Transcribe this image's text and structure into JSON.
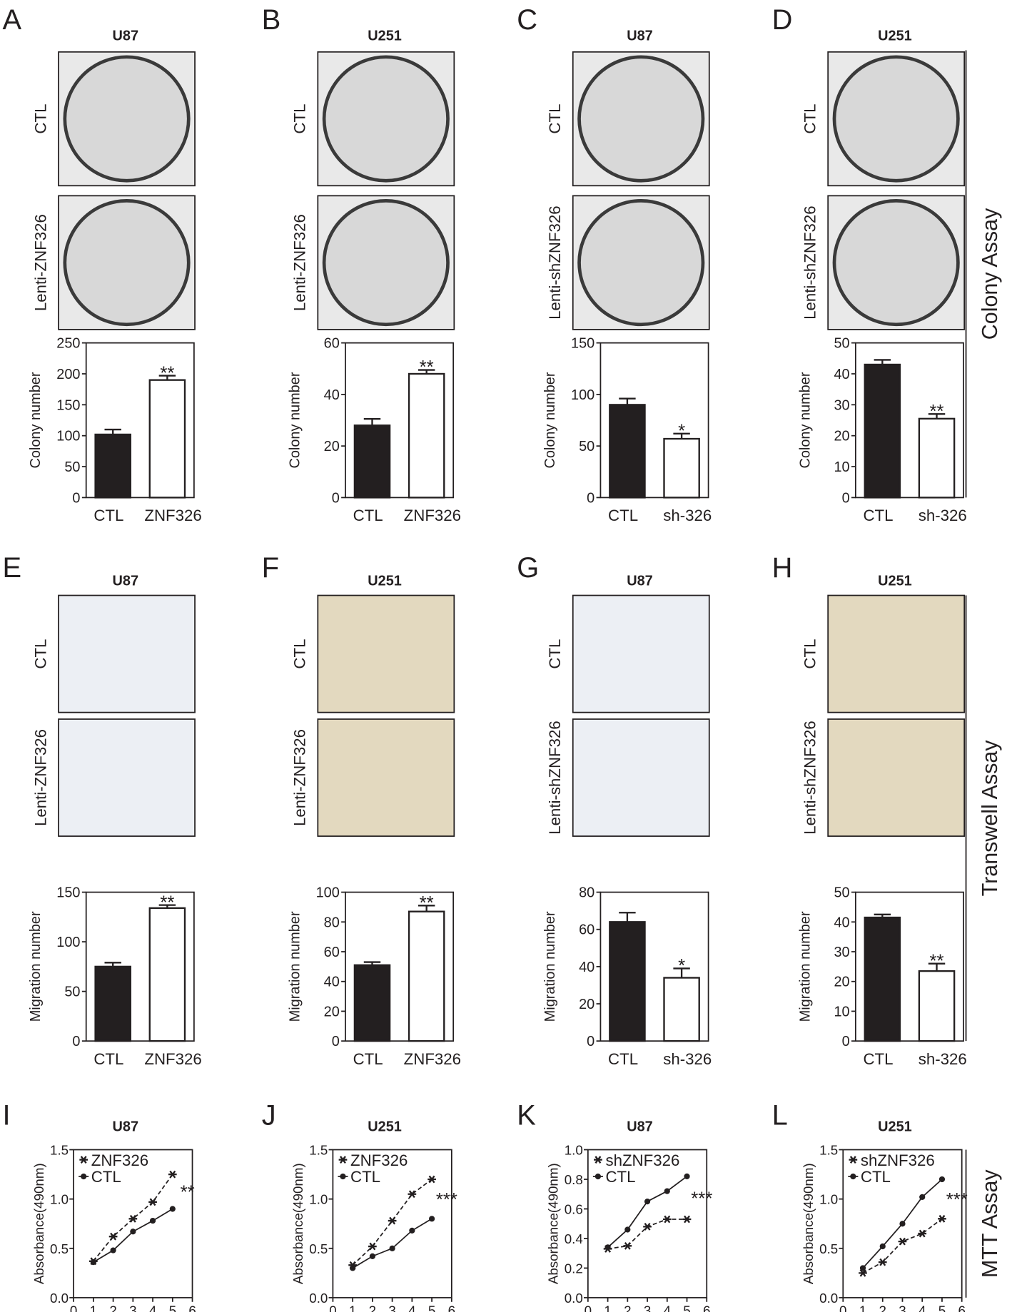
{
  "panels": [
    {
      "letter": "A",
      "image_labels": [
        "CTL",
        "Lenti-ZNF326"
      ]
    },
    {
      "letter": "B",
      "image_labels": [
        "CTL",
        "Lenti-ZNF326"
      ]
    },
    {
      "letter": "C",
      "image_labels": [
        "CTL",
        "Lenti-shZNF326"
      ]
    },
    {
      "letter": "D",
      "image_labels": [
        "CTL",
        "Lenti-shZNF326"
      ]
    },
    {
      "letter": "E",
      "image_labels": [
        "CTL",
        "Lenti-ZNF326"
      ]
    },
    {
      "letter": "F",
      "image_labels": [
        "CTL",
        "Lenti-ZNF326"
      ]
    },
    {
      "letter": "G",
      "image_labels": [
        "CTL",
        "Lenti-shZNF326"
      ]
    },
    {
      "letter": "H",
      "image_labels": [
        "CTL",
        "Lenti-shZNF326"
      ]
    },
    {
      "letter": "I"
    },
    {
      "letter": "J"
    },
    {
      "letter": "K"
    },
    {
      "letter": "L"
    }
  ],
  "sections": [
    {
      "label": "Colony Assay"
    },
    {
      "label": "Transwell Assay"
    },
    {
      "label": "MTT Assay"
    }
  ],
  "chart_data": [
    {
      "type": "bar",
      "title": "U87",
      "y_label": "Colony number",
      "categories": [
        "CTL",
        "ZNF326"
      ],
      "values": [
        102,
        190
      ],
      "errors": [
        8,
        7
      ],
      "colors": [
        "#231f20",
        "#ffffff"
      ],
      "annotation": "**",
      "ylim": [
        0,
        250
      ],
      "yticks": [
        0,
        50,
        100,
        150,
        200,
        250
      ]
    },
    {
      "type": "bar",
      "title": "U251",
      "y_label": "Colony number",
      "categories": [
        "CTL",
        "ZNF326"
      ],
      "values": [
        28,
        48
      ],
      "errors": [
        2.5,
        1.5
      ],
      "colors": [
        "#231f20",
        "#ffffff"
      ],
      "annotation": "**",
      "ylim": [
        0,
        60
      ],
      "yticks": [
        0,
        20,
        40,
        60
      ]
    },
    {
      "type": "bar",
      "title": "U87",
      "y_label": "Colony number",
      "categories": [
        "CTL",
        "sh-326"
      ],
      "values": [
        90,
        57
      ],
      "errors": [
        6,
        5
      ],
      "colors": [
        "#231f20",
        "#ffffff"
      ],
      "annotation": "*",
      "ylim": [
        0,
        150
      ],
      "yticks": [
        0,
        50,
        100,
        150
      ]
    },
    {
      "type": "bar",
      "title": "U251",
      "y_label": "Colony number",
      "categories": [
        "CTL",
        "sh-326"
      ],
      "values": [
        43,
        25.5
      ],
      "errors": [
        1.5,
        1.5
      ],
      "colors": [
        "#231f20",
        "#ffffff"
      ],
      "annotation": "**",
      "ylim": [
        0,
        50
      ],
      "yticks": [
        0,
        10,
        20,
        30,
        40,
        50
      ]
    },
    {
      "type": "bar",
      "title": "U87",
      "y_label": "Migration number",
      "categories": [
        "CTL",
        "ZNF326"
      ],
      "values": [
        75,
        134
      ],
      "errors": [
        4,
        3
      ],
      "colors": [
        "#231f20",
        "#ffffff"
      ],
      "annotation": "**",
      "ylim": [
        0,
        150
      ],
      "yticks": [
        0,
        50,
        100,
        150
      ]
    },
    {
      "type": "bar",
      "title": "U251",
      "y_label": "Migration number",
      "categories": [
        "CTL",
        "ZNF326"
      ],
      "values": [
        51,
        87
      ],
      "errors": [
        2,
        4
      ],
      "colors": [
        "#231f20",
        "#ffffff"
      ],
      "annotation": "**",
      "ylim": [
        0,
        100
      ],
      "yticks": [
        0,
        20,
        40,
        60,
        80,
        100
      ]
    },
    {
      "type": "bar",
      "title": "U87",
      "y_label": "Migration number",
      "categories": [
        "CTL",
        "sh-326"
      ],
      "values": [
        64,
        34
      ],
      "errors": [
        5,
        5
      ],
      "colors": [
        "#231f20",
        "#ffffff"
      ],
      "annotation": "*",
      "ylim": [
        0,
        80
      ],
      "yticks": [
        0,
        20,
        40,
        60,
        80
      ]
    },
    {
      "type": "bar",
      "title": "U251",
      "y_label": "Migration number",
      "categories": [
        "CTL",
        "sh-326"
      ],
      "values": [
        41.5,
        23.5
      ],
      "errors": [
        1,
        2.5
      ],
      "colors": [
        "#231f20",
        "#ffffff"
      ],
      "annotation": "**",
      "ylim": [
        0,
        50
      ],
      "yticks": [
        0,
        10,
        20,
        30,
        40,
        50
      ]
    },
    {
      "type": "line",
      "title": "U87",
      "y_label": "Absorbance(490nm)",
      "x": [
        1,
        2,
        3,
        4,
        5
      ],
      "series": [
        {
          "name": "ZNF326",
          "color": "#231f20",
          "line_style": "dashed",
          "values": [
            0.37,
            0.62,
            0.8,
            0.97,
            1.25
          ]
        },
        {
          "name": "CTL",
          "color": "#231f20",
          "line_style": "solid",
          "values": [
            0.36,
            0.48,
            0.67,
            0.78,
            0.9
          ]
        }
      ],
      "annotation": "**",
      "legend": "upper left",
      "xlim": [
        0,
        6
      ],
      "xticks": [
        0,
        1,
        2,
        3,
        4,
        5,
        6
      ],
      "ylim": [
        0,
        1.5
      ],
      "yticks": [
        {
          "value": 0,
          "label": "0.0"
        },
        0.5,
        {
          "value": 1,
          "label": "1.0"
        },
        1.5
      ]
    },
    {
      "type": "line",
      "title": "U251",
      "y_label": "Absorbance(490nm)",
      "x": [
        1,
        2,
        3,
        4,
        5
      ],
      "series": [
        {
          "name": "ZNF326",
          "color": "#231f20",
          "line_style": "dashed",
          "values": [
            0.33,
            0.52,
            0.78,
            1.05,
            1.2
          ]
        },
        {
          "name": "CTL",
          "color": "#231f20",
          "line_style": "solid",
          "values": [
            0.3,
            0.42,
            0.5,
            0.68,
            0.8
          ]
        }
      ],
      "annotation": "***",
      "legend": "upper left",
      "xlim": [
        0,
        6
      ],
      "xticks": [
        0,
        1,
        2,
        3,
        4,
        5,
        6
      ],
      "ylim": [
        0,
        1.5
      ],
      "yticks": [
        {
          "value": 0,
          "label": "0.0"
        },
        0.5,
        {
          "value": 1,
          "label": "1.0"
        },
        1.5
      ]
    },
    {
      "type": "line",
      "title": "U87",
      "y_label": "Absorbance(490nm)",
      "x": [
        1,
        2,
        3,
        4,
        5
      ],
      "series": [
        {
          "name": "shZNF326",
          "color": "#231f20",
          "line_style": "dashed",
          "values": [
            0.33,
            0.35,
            0.48,
            0.53,
            0.53
          ]
        },
        {
          "name": "CTL",
          "color": "#231f20",
          "line_style": "solid",
          "values": [
            0.34,
            0.46,
            0.65,
            0.72,
            0.82
          ]
        }
      ],
      "annotation": "***",
      "legend": "upper left",
      "xlim": [
        0,
        6
      ],
      "xticks": [
        0,
        1,
        2,
        3,
        4,
        5,
        6
      ],
      "ylim": [
        0,
        1
      ],
      "yticks": [
        {
          "value": 0,
          "label": "0.0"
        },
        0.2,
        0.4,
        0.6,
        0.8,
        {
          "value": 1,
          "label": "1.0"
        }
      ]
    },
    {
      "type": "line",
      "title": "U251",
      "y_label": "Absorbance(490nm)",
      "x": [
        1,
        2,
        3,
        4,
        5
      ],
      "series": [
        {
          "name": "shZNF326",
          "color": "#231f20",
          "line_style": "dashed",
          "values": [
            0.25,
            0.36,
            0.57,
            0.65,
            0.8
          ]
        },
        {
          "name": "CTL",
          "color": "#231f20",
          "line_style": "solid",
          "values": [
            0.3,
            0.52,
            0.75,
            1.02,
            1.2
          ]
        }
      ],
      "annotation": "***",
      "legend": "upper left",
      "xlim": [
        0,
        6
      ],
      "xticks": [
        0,
        1,
        2,
        3,
        4,
        5,
        6
      ],
      "ylim": [
        0,
        1.5
      ],
      "yticks": [
        {
          "value": 0,
          "label": "0.0"
        },
        0.5,
        {
          "value": 1,
          "label": "1.0"
        },
        1.5
      ]
    }
  ]
}
